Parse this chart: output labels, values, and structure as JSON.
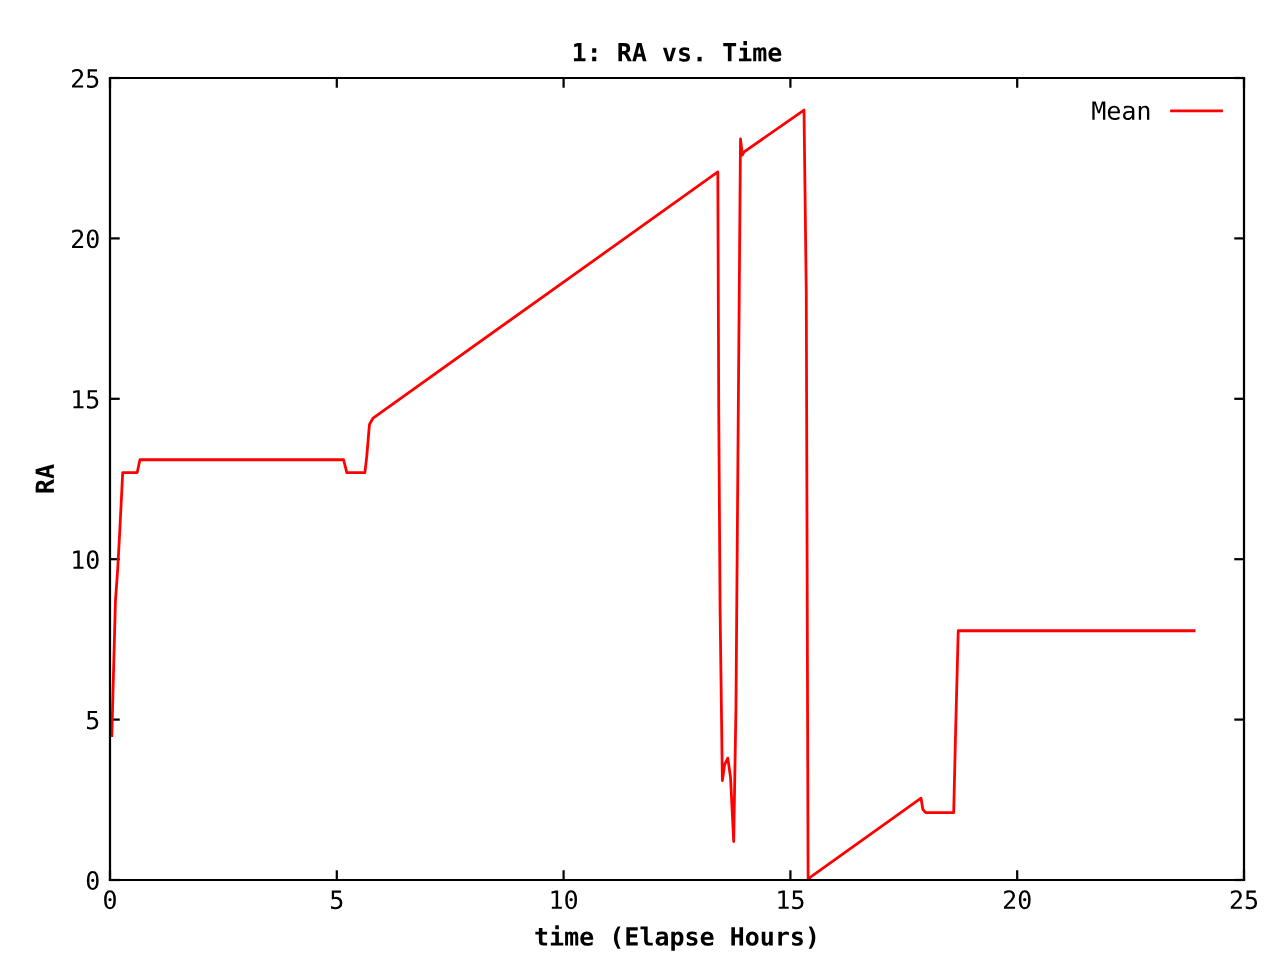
{
  "chart_data": {
    "type": "line",
    "title": "1: RA vs. Time",
    "xlabel": "time (Elapse Hours)",
    "ylabel": "RA",
    "xlim": [
      0,
      25
    ],
    "ylim": [
      0,
      25
    ],
    "xticks": [
      0,
      5,
      10,
      15,
      20,
      25
    ],
    "yticks": [
      0,
      5,
      10,
      15,
      20,
      25
    ],
    "grid": false,
    "legend": "top right",
    "series": [
      {
        "name": "Mean",
        "color": "#ff0000",
        "x": [
          0.04,
          0.08,
          0.12,
          0.17,
          0.22,
          0.28,
          0.32,
          0.6,
          0.66,
          0.72,
          5.15,
          5.22,
          5.3,
          5.62,
          5.66,
          5.72,
          5.8,
          13.4,
          13.42,
          13.45,
          13.5,
          13.55,
          13.62,
          13.68,
          13.75,
          13.8,
          13.86,
          13.9,
          13.94,
          13.98,
          15.3,
          15.35,
          15.39,
          15.42,
          15.45,
          17.88,
          17.92,
          17.98,
          18.6,
          18.64,
          18.7,
          23.9
        ],
        "values": [
          4.5,
          6.6,
          8.7,
          9.7,
          11.0,
          12.7,
          12.7,
          12.7,
          13.1,
          13.1,
          13.1,
          12.7,
          12.7,
          12.7,
          13.2,
          14.2,
          14.4,
          22.07,
          14.7,
          8.4,
          3.1,
          3.6,
          3.8,
          3.2,
          1.2,
          5.4,
          16.2,
          23.1,
          22.6,
          22.7,
          24.0,
          18.3,
          0.05,
          0.05,
          0.1,
          2.55,
          2.2,
          2.1,
          2.1,
          4.5,
          7.77,
          7.77
        ]
      }
    ]
  }
}
